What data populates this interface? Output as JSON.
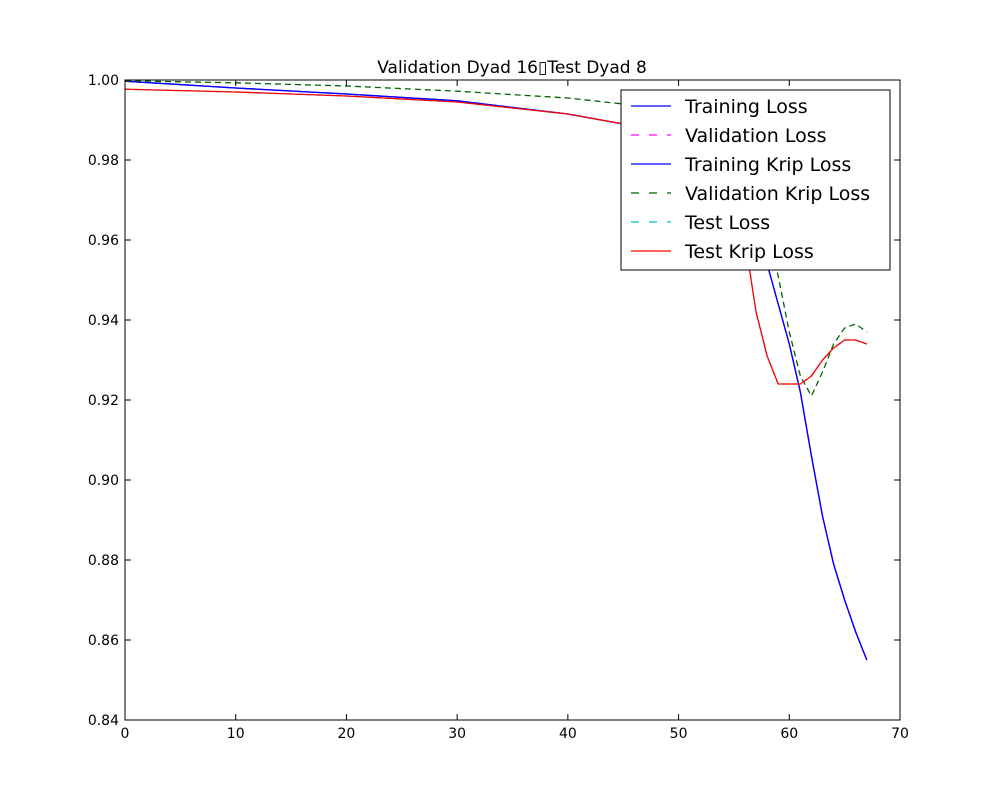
{
  "chart_data": {
    "type": "line",
    "title": "Validation Dyad 16▯Test Dyad 8",
    "xlabel": "",
    "ylabel": "",
    "xlim": [
      0,
      70
    ],
    "ylim": [
      0.84,
      1.0
    ],
    "xticks": [
      0,
      10,
      20,
      30,
      40,
      50,
      60,
      70
    ],
    "xtick_labels": [
      "0",
      "10",
      "20",
      "30",
      "40",
      "50",
      "60",
      "70"
    ],
    "yticks": [
      0.84,
      0.86,
      0.88,
      0.9,
      0.92,
      0.94,
      0.96,
      0.98,
      1.0
    ],
    "ytick_labels": [
      "0.84",
      "0.86",
      "0.88",
      "0.90",
      "0.92",
      "0.94",
      "0.96",
      "0.98",
      "1.00"
    ],
    "grid": false,
    "legend_position": "top-right",
    "series": [
      {
        "name": "Training Loss",
        "color": "#0000ff",
        "dash": "solid",
        "x": [
          0,
          10,
          20,
          30,
          40,
          45,
          50,
          53,
          55,
          57,
          58,
          59,
          60,
          61,
          62,
          63,
          64,
          65,
          66,
          67
        ],
        "y": [
          0.9997,
          0.998,
          0.9965,
          0.9948,
          0.9915,
          0.989,
          0.985,
          0.979,
          0.972,
          0.962,
          0.954,
          0.944,
          0.934,
          0.922,
          0.906,
          0.891,
          0.879,
          0.87,
          0.862,
          0.855
        ]
      },
      {
        "name": "Validation Loss",
        "color": "#ff00ff",
        "dash": "dashed",
        "x": [
          0,
          10,
          20,
          30,
          40,
          45,
          50,
          53,
          55,
          57,
          58,
          59,
          60,
          61,
          62,
          63,
          64,
          65,
          66,
          67
        ],
        "y": [
          0.9997,
          0.998,
          0.9965,
          0.9948,
          0.9915,
          0.989,
          0.985,
          0.979,
          0.972,
          0.962,
          0.954,
          0.944,
          0.934,
          0.922,
          0.906,
          0.891,
          0.879,
          0.87,
          0.862,
          0.855
        ]
      },
      {
        "name": "Training Krip Loss",
        "color": "#0000ff",
        "dash": "solid",
        "x": [
          0,
          10,
          20,
          30,
          40,
          45,
          50,
          53,
          55,
          57,
          58,
          59,
          60,
          61,
          62,
          63,
          64,
          65,
          66,
          67
        ],
        "y": [
          0.9997,
          0.998,
          0.9965,
          0.9948,
          0.9915,
          0.989,
          0.985,
          0.979,
          0.972,
          0.962,
          0.954,
          0.944,
          0.934,
          0.922,
          0.906,
          0.891,
          0.879,
          0.87,
          0.862,
          0.855
        ]
      },
      {
        "name": "Validation Krip Loss",
        "color": "#006400",
        "dash": "dashed",
        "x": [
          0,
          10,
          20,
          30,
          40,
          45,
          50,
          55,
          57,
          58,
          59,
          60,
          61,
          62,
          63,
          64,
          65,
          66,
          67
        ],
        "y": [
          0.9998,
          0.9993,
          0.9985,
          0.9972,
          0.9955,
          0.994,
          0.991,
          0.982,
          0.97,
          0.962,
          0.951,
          0.937,
          0.926,
          0.921,
          0.927,
          0.934,
          0.938,
          0.939,
          0.937
        ]
      },
      {
        "name": "Test Loss",
        "color": "#00bfbf",
        "dash": "dashed",
        "x": [
          0,
          10,
          20,
          30,
          40,
          45,
          50,
          55,
          56,
          57,
          58,
          59,
          60,
          61,
          62,
          63,
          64,
          65,
          66,
          67
        ],
        "y": [
          0.9977,
          0.997,
          0.996,
          0.9945,
          0.9915,
          0.989,
          0.985,
          0.975,
          0.96,
          0.942,
          0.931,
          0.924,
          0.924,
          0.924,
          0.926,
          0.93,
          0.933,
          0.935,
          0.935,
          0.934
        ]
      },
      {
        "name": "Test Krip Loss",
        "color": "#ff0000",
        "dash": "solid",
        "x": [
          0,
          10,
          20,
          30,
          40,
          45,
          50,
          55,
          56,
          57,
          58,
          59,
          60,
          61,
          62,
          63,
          64,
          65,
          66,
          67
        ],
        "y": [
          0.9977,
          0.997,
          0.996,
          0.9945,
          0.9915,
          0.989,
          0.985,
          0.975,
          0.96,
          0.942,
          0.931,
          0.924,
          0.924,
          0.924,
          0.926,
          0.93,
          0.933,
          0.935,
          0.935,
          0.934
        ]
      }
    ]
  }
}
